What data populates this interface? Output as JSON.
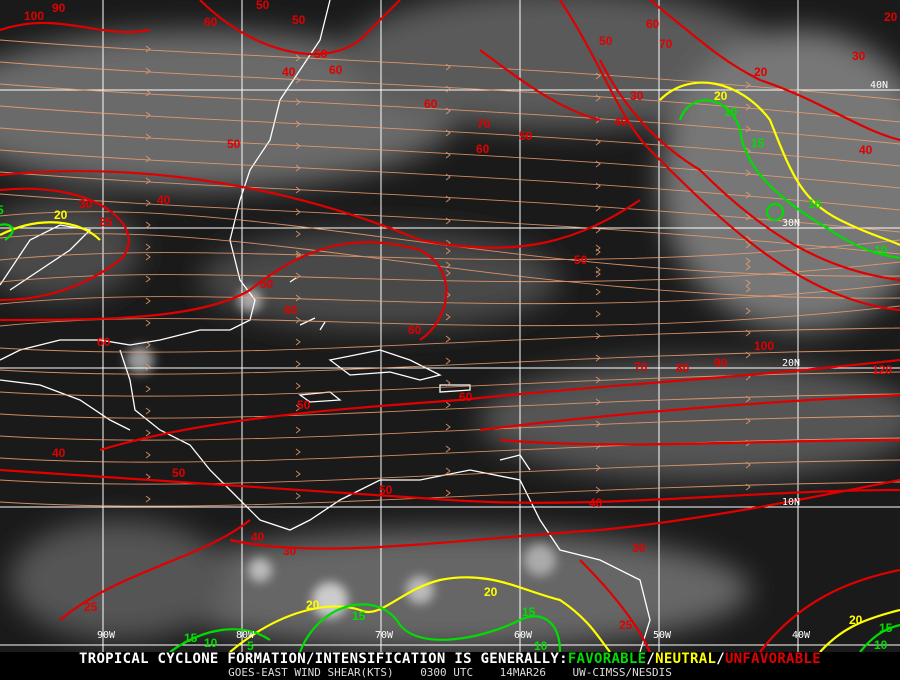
{
  "colors": {
    "unfavorable": "#e00000",
    "neutral": "#ffff00",
    "favorable": "#00dd00",
    "streamline": "#f0a070",
    "grid": "#ffffff",
    "coast": "#ffffff"
  },
  "grid_labels": {
    "lat": [
      "40N",
      "30N",
      "20N",
      "10N"
    ],
    "lon": [
      "90W",
      "80W",
      "70W",
      "60W",
      "50W",
      "40W"
    ]
  },
  "contour_labels": {
    "red": [
      "100",
      "90",
      "50",
      "60",
      "50",
      "40",
      "60",
      "50",
      "60",
      "70",
      "50",
      "60",
      "50",
      "40",
      "30",
      "50",
      "60",
      "70",
      "20",
      "30",
      "40",
      "20",
      "40",
      "30",
      "25",
      "50",
      "50",
      "60",
      "60",
      "60",
      "70",
      "80",
      "90",
      "100",
      "120",
      "50",
      "60",
      "40",
      "50",
      "50",
      "40",
      "40",
      "30",
      "30",
      "25",
      "25"
    ],
    "yellow": [
      "20",
      "20",
      "20",
      "20",
      "20"
    ],
    "green": [
      "5",
      "10",
      "15",
      "10",
      "10",
      "15",
      "10",
      "5",
      "15",
      "15",
      "10",
      "15",
      "10"
    ]
  },
  "footer": {
    "title_prefix": "TROPICAL CYCLONE FORMATION/INTENSIFICATION IS GENERALLY:",
    "favorable": "FAVORABLE",
    "sep1": "/",
    "neutral": "NEUTRAL",
    "sep2": "/",
    "unfavorable": "UNFAVORABLE",
    "product": "GOES-EAST WIND SHEAR(KTS)",
    "time": "0300 UTC",
    "date": "14MAR26",
    "source": "UW-CIMSS/NESDIS"
  }
}
